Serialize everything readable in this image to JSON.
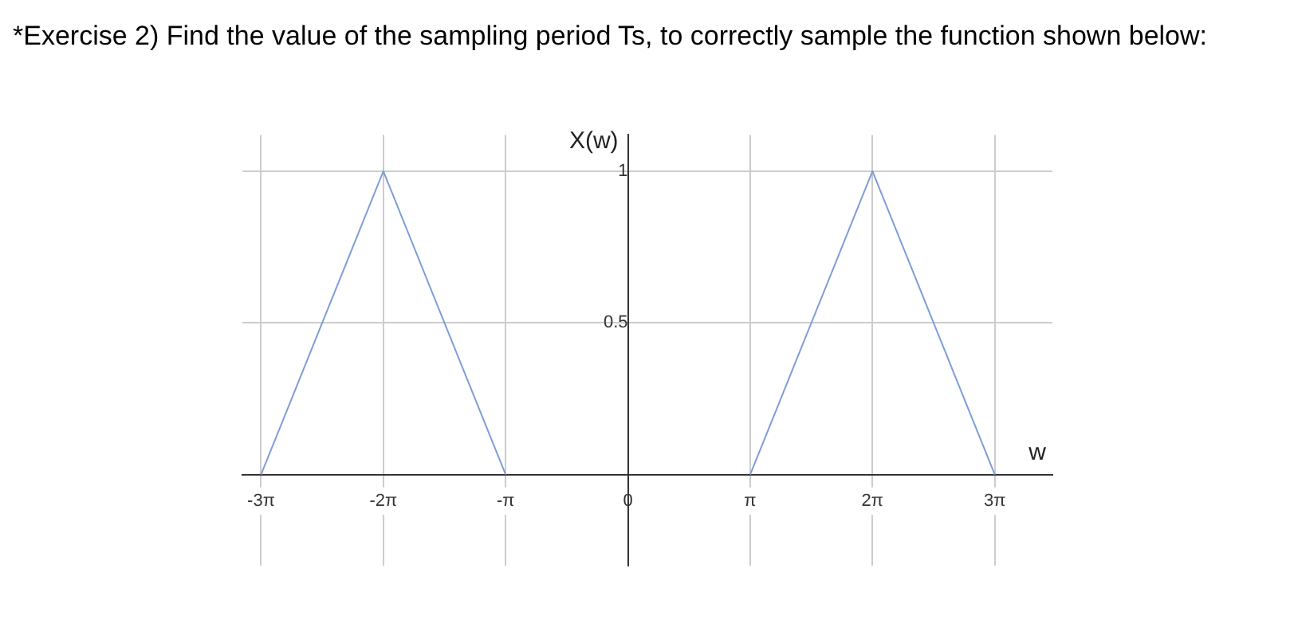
{
  "chart_data": {
    "type": "line",
    "title": "*Exercise 2) Find the value of the sampling period Ts, to correctly sample the function shown below:",
    "xlabel": "w",
    "ylabel": "X(w)",
    "series": [
      {
        "color": "#7f9cd8",
        "x": [
          -9.42,
          -6.28,
          -3.14
        ],
        "values": [
          0,
          1,
          0
        ]
      },
      {
        "color": "#7f9cd8",
        "x": [
          3.14,
          6.28,
          9.42
        ],
        "values": [
          0,
          1,
          0
        ]
      }
    ],
    "xlim": [
      -9.9,
      10.9
    ],
    "ylim": [
      -0.3,
      1.12
    ],
    "xticks": [
      {
        "value": -9.42,
        "label": "-3π"
      },
      {
        "value": -6.28,
        "label": "-2π"
      },
      {
        "value": -3.14,
        "label": "-π"
      },
      0,
      {
        "value": 3.14,
        "label": "π"
      },
      {
        "value": 6.28,
        "label": "2π"
      },
      {
        "value": 9.42,
        "label": "3π"
      }
    ],
    "yticks": [
      0.5,
      1
    ],
    "grid": true,
    "legend": false,
    "marker": "none",
    "line_style": "solid"
  }
}
